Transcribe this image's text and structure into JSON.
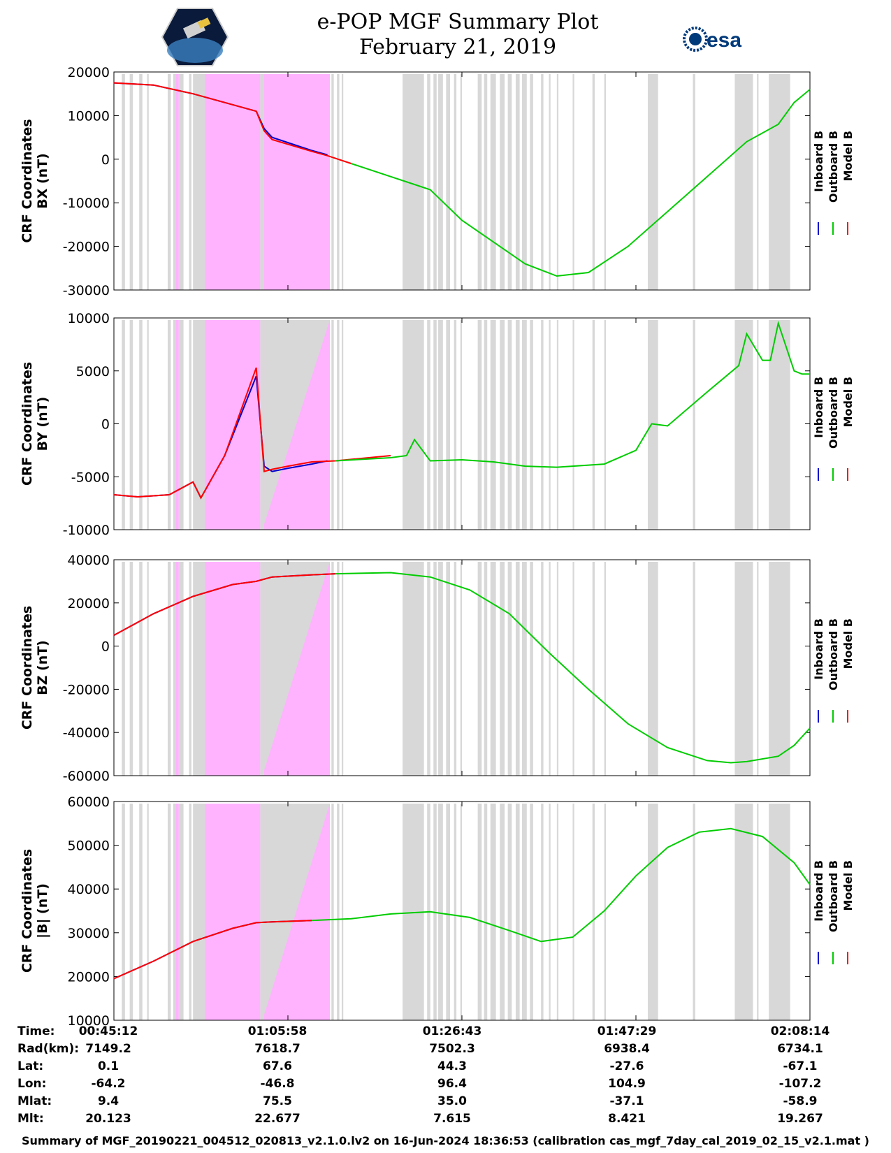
{
  "header": {
    "title_line1": "e-POP MGF Summary Plot",
    "title_line2": "February 21, 2019",
    "logo_left": "cassiope-logo",
    "logo_right_text": "esa"
  },
  "legend": {
    "labels": [
      "Inboard B",
      "Outboard B",
      "Model B"
    ],
    "colors": [
      "#0000cc",
      "#00cc00",
      "#ff0000"
    ]
  },
  "shading": {
    "gray_color": "#d8d8d8",
    "magenta_color": "#ffb3ff",
    "t_range_minutes": [
      0,
      88
    ]
  },
  "chart_data": [
    {
      "type": "line",
      "ylabel": [
        "CRF Coordinates",
        "BX (nT)"
      ],
      "ylim": [
        -30000,
        20000
      ],
      "yticks": [
        "20000",
        "10000",
        "0",
        "-10000",
        "-20000",
        "-30000"
      ],
      "ytick_values": [
        20000,
        10000,
        0,
        -10000,
        -20000,
        -30000
      ],
      "series": [
        {
          "name": "Inboard B",
          "x": [
            0,
            5,
            10,
            18,
            19,
            20,
            25,
            27
          ],
          "y": [
            17500,
            17000,
            15000,
            11000,
            7000,
            5000,
            2000,
            1000
          ]
        },
        {
          "name": "Outboard B",
          "x": [
            30,
            38,
            40,
            44,
            48,
            52,
            56,
            60,
            65,
            70,
            75,
            80,
            84,
            86,
            88
          ],
          "y": [
            -1000,
            -5800,
            -7000,
            -14000,
            -19000,
            -24000,
            -26800,
            -26000,
            -20000,
            -12000,
            -4000,
            4000,
            8000,
            13000,
            16000
          ]
        },
        {
          "name": "Model B",
          "x": [
            0,
            5,
            10,
            18,
            19,
            20,
            25,
            27,
            30
          ],
          "y": [
            17500,
            17000,
            15000,
            11000,
            6500,
            4500,
            1800,
            800,
            -1000
          ]
        }
      ]
    },
    {
      "type": "line",
      "ylabel": [
        "CRF Coordinates",
        "BY (nT)"
      ],
      "ylim": [
        -10000,
        10000
      ],
      "yticks": [
        "10000",
        "5000",
        "0",
        "-5000",
        "-10000"
      ],
      "ytick_values": [
        10000,
        5000,
        0,
        -5000,
        -10000
      ],
      "series": [
        {
          "name": "Inboard B",
          "x": [
            0,
            3,
            7,
            10,
            11,
            14,
            18,
            19,
            20,
            22,
            25,
            27
          ],
          "y": [
            -6700,
            -6900,
            -6700,
            -5500,
            -7000,
            -3000,
            4500,
            -4000,
            -4500,
            -4200,
            -3800,
            -3500
          ]
        },
        {
          "name": "Outboard B",
          "x": [
            28,
            35,
            37,
            38,
            40,
            44,
            48,
            52,
            56,
            62,
            66,
            68,
            70,
            75,
            79,
            80,
            82,
            83,
            84,
            86,
            87,
            88
          ],
          "y": [
            -3500,
            -3200,
            -3000,
            -1500,
            -3500,
            -3400,
            -3600,
            -4000,
            -4100,
            -3800,
            -2500,
            0,
            -200,
            3000,
            5500,
            8500,
            6000,
            6000,
            9500,
            5000,
            4700,
            4700
          ]
        },
        {
          "name": "Model B",
          "x": [
            0,
            3,
            7,
            10,
            11,
            14,
            18,
            19,
            20,
            22,
            25,
            28,
            35
          ],
          "y": [
            -6700,
            -6900,
            -6700,
            -5500,
            -7000,
            -3000,
            5300,
            -4500,
            -4300,
            -4000,
            -3600,
            -3500,
            -3000
          ]
        }
      ]
    },
    {
      "type": "line",
      "ylabel": [
        "CRF Coordinates",
        "BZ (nT)"
      ],
      "ylim": [
        -60000,
        40000
      ],
      "yticks": [
        "40000",
        "20000",
        "0",
        "-20000",
        "-40000",
        "-60000"
      ],
      "ytick_values": [
        40000,
        20000,
        0,
        -20000,
        -40000,
        -60000
      ],
      "series": [
        {
          "name": "Inboard B",
          "x": [
            0,
            5,
            10,
            15,
            18,
            20,
            25,
            28
          ],
          "y": [
            5000,
            15000,
            23000,
            28500,
            30000,
            32000,
            33000,
            33500
          ]
        },
        {
          "name": "Outboard B",
          "x": [
            28,
            35,
            40,
            45,
            50,
            55,
            60,
            65,
            70,
            75,
            78,
            80,
            84,
            86,
            88
          ],
          "y": [
            33500,
            34000,
            32000,
            26000,
            15000,
            -3000,
            -20000,
            -36000,
            -47000,
            -53000,
            -54000,
            -53500,
            -51000,
            -46000,
            -38000
          ]
        },
        {
          "name": "Model B",
          "x": [
            0,
            5,
            10,
            15,
            18,
            20,
            25,
            28
          ],
          "y": [
            5000,
            15000,
            23000,
            28500,
            30000,
            32000,
            33000,
            33500
          ]
        }
      ]
    },
    {
      "type": "line",
      "ylabel": [
        "CRF Coordinates",
        "|B| (nT)"
      ],
      "ylim": [
        10000,
        60000
      ],
      "yticks": [
        "60000",
        "50000",
        "40000",
        "30000",
        "20000",
        "10000"
      ],
      "ytick_values": [
        60000,
        50000,
        40000,
        30000,
        20000,
        10000
      ],
      "series": [
        {
          "name": "Inboard B",
          "x": [
            0,
            5,
            10,
            15,
            18,
            20,
            25
          ],
          "y": [
            19500,
            23500,
            28000,
            31000,
            32300,
            32500,
            32800
          ]
        },
        {
          "name": "Outboard B",
          "x": [
            25,
            30,
            35,
            40,
            45,
            50,
            54,
            58,
            62,
            66,
            70,
            74,
            78,
            82,
            86,
            88
          ],
          "y": [
            32800,
            33200,
            34300,
            34800,
            33500,
            30500,
            28000,
            29000,
            35000,
            43000,
            49500,
            53000,
            53800,
            52000,
            46000,
            41000
          ]
        },
        {
          "name": "Model B",
          "x": [
            0,
            5,
            10,
            15,
            18,
            20,
            25
          ],
          "y": [
            19500,
            23500,
            28000,
            31000,
            32300,
            32500,
            32800
          ]
        }
      ]
    }
  ],
  "footer": {
    "row_labels": [
      "Time:",
      "Rad(km):",
      "Lat:",
      "Lon:",
      "Mlat:",
      "Mlt:"
    ],
    "columns": [
      {
        "Time": "00:45:12",
        "Rad": "7149.2",
        "Lat": "0.1",
        "Lon": "-64.2",
        "Mlat": "9.4",
        "Mlt": "20.123"
      },
      {
        "Time": "01:05:58",
        "Rad": "7618.7",
        "Lat": "67.6",
        "Lon": "-46.8",
        "Mlat": "75.5",
        "Mlt": "22.677"
      },
      {
        "Time": "01:26:43",
        "Rad": "7502.3",
        "Lat": "44.3",
        "Lon": "96.4",
        "Mlat": "35.0",
        "Mlt": "7.615"
      },
      {
        "Time": "01:47:29",
        "Rad": "6938.4",
        "Lat": "-27.6",
        "Lon": "104.9",
        "Mlat": "-37.1",
        "Mlt": "8.421"
      },
      {
        "Time": "02:08:14",
        "Rad": "6734.1",
        "Lat": "-67.1",
        "Lon": "-107.2",
        "Mlat": "-58.9",
        "Mlt": "19.267"
      }
    ],
    "summary": "Summary of MGF_20190221_004512_020813_v2.1.0.lv2 on 16-Jun-2024 18:36:53 (calibration cas_mgf_7day_cal_2019_02_15_v2.1.mat )"
  }
}
